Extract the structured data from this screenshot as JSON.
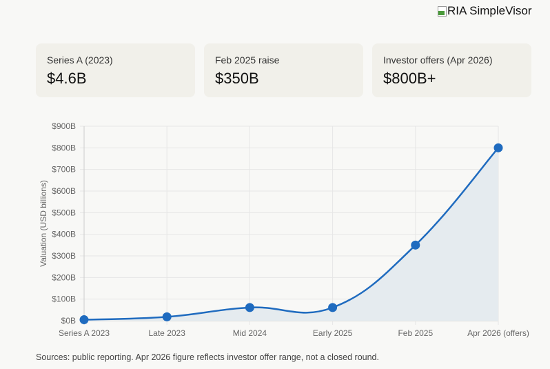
{
  "logo": {
    "alt_text": "RIA SimpleVisor"
  },
  "cards": [
    {
      "label": "Series A (2023)",
      "value": "$4.6B"
    },
    {
      "label": "Feb 2025 raise",
      "value": "$350B"
    },
    {
      "label": "Investor offers (Apr 2026)",
      "value": "$800B+"
    }
  ],
  "chart_data": {
    "type": "line",
    "categories": [
      "Series A 2023",
      "Late 2023",
      "Mid 2024",
      "Early 2025",
      "Feb 2025",
      "Apr 2026 (offers)"
    ],
    "series": [
      {
        "values": [
          4.6,
          18,
          61,
          61,
          350,
          800
        ]
      }
    ],
    "ylabel": "Valuation (USD billions)",
    "ylim": [
      0,
      900
    ],
    "yticks": [
      "$0B",
      "$100B",
      "$200B",
      "$300B",
      "$400B",
      "$500B",
      "$600B",
      "$700B",
      "$800B",
      "$900B"
    ],
    "grid": true,
    "fill": true,
    "colors": {
      "line": "#1f6bbf",
      "fill": "#e5ebef"
    }
  },
  "source_note": "Sources: public reporting. Apr 2026 figure reflects investor offer range, not a closed round."
}
